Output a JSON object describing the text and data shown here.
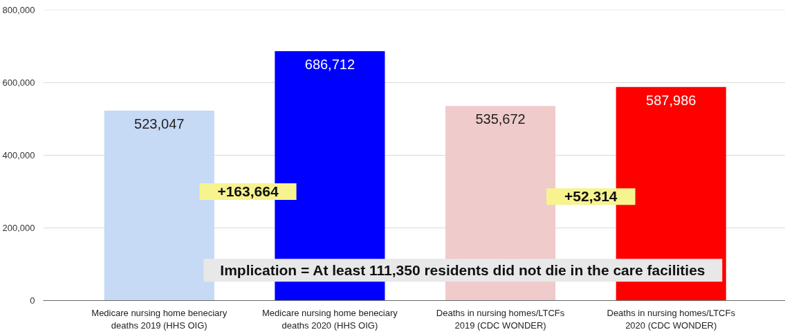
{
  "chart_data": {
    "type": "bar",
    "categories": [
      "Medicare nursing home beneciary deaths 2019 (HHS OIG)",
      "Medicare nursing home beneciary deaths 2020 (HHS OIG)",
      "Deaths in nursing homes/LTCFs 2019 (CDC WONDER)",
      "Deaths in nursing homes/LTCFs 2020 (CDC WONDER)"
    ],
    "values": [
      523047,
      686712,
      535672,
      587986
    ],
    "value_labels": [
      "523,047",
      "686,712",
      "535,672",
      "587,986"
    ],
    "colors": [
      "#c6d9f5",
      "#0000ff",
      "#efcbcb",
      "#ff0000"
    ],
    "ylim": [
      0,
      800000
    ],
    "yticks": [
      {
        "value": 0,
        "label": "0"
      },
      {
        "value": 200000,
        "label": "200,000"
      },
      {
        "value": 400000,
        "label": "400,000"
      },
      {
        "value": 600000,
        "label": "600,000"
      },
      {
        "value": 800000,
        "label": "800,000"
      }
    ],
    "grid": "y",
    "annotations": [
      "+163,664",
      "+52,314",
      "Implication = At least 111,350 residents did not die in the care facilities"
    ]
  }
}
